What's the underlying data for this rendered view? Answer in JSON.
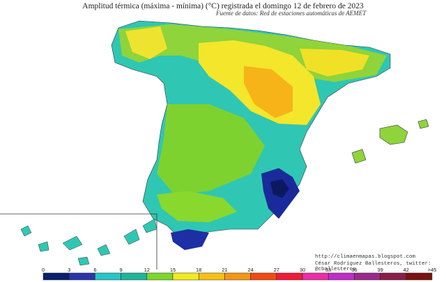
{
  "title": "Amplitud térmica (máxima - mínima) (°C) registrada el domingo 12 de febrero de 2023",
  "subtitle": "Fuente de datos: Red de estaciones automáticas de AEMET",
  "credits": {
    "url": "http://climaenmapas.blogspot.com",
    "author": "César Rodríguez Ballesteros, twitter: @cballesteros"
  },
  "legend": {
    "ticks": [
      "0",
      "3",
      "6",
      "9",
      "12",
      "15",
      "18",
      "21",
      "24",
      "27",
      "30",
      "33",
      "36",
      "39",
      "42",
      ">45"
    ],
    "colors": [
      "#0b1f6e",
      "#2a36a8",
      "#27c6c6",
      "#1fb59a",
      "#7dd62c",
      "#f2ea1e",
      "#f7c016",
      "#f29714",
      "#f24b12",
      "#ee1c3a",
      "#ea2fa6",
      "#c02dc8",
      "#9a2a8a",
      "#8a1f4c",
      "#7a1212"
    ]
  },
  "colors": {
    "sea": "#ffffff",
    "border": "#333333"
  }
}
